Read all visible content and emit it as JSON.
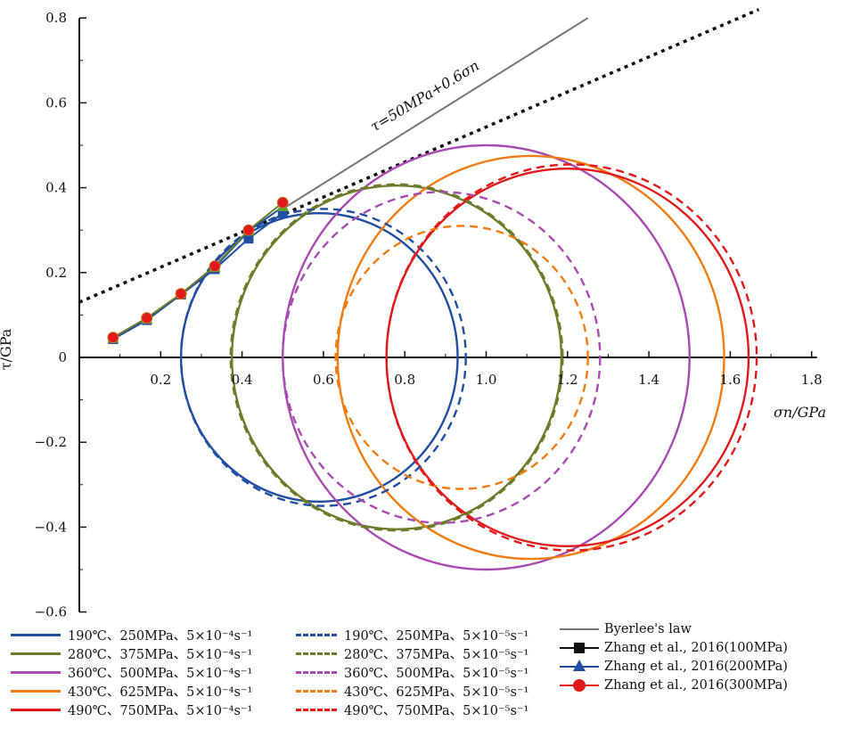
{
  "chart_data": {
    "type": "scatter",
    "xlabel": "σn/GPa",
    "ylabel": "τ/GPa",
    "xlim": [
      0,
      1.8
    ],
    "ylim": [
      -0.6,
      0.8
    ],
    "x_ticks": [
      "0.2",
      "0.4",
      "0.6",
      "0.8",
      "1.0",
      "1.2",
      "1.4",
      "1.6",
      "1.8"
    ],
    "y_ticks": [
      "0.8",
      "0.6",
      "0.4",
      "0.2",
      "0",
      "-0.2",
      "-0.4",
      "-0.6"
    ],
    "annotation": "τ=50MPa+0.6σn",
    "circles": [
      {
        "name": "190℃、250MPa、5×10⁻⁴s⁻¹",
        "center": 0.59,
        "radius": 0.34,
        "color": "#1f4ea3",
        "dash": false
      },
      {
        "name": "280℃、375MPa、5×10⁻⁴s⁻¹",
        "center": 0.78,
        "radius": 0.405,
        "color": "#6b7d2a",
        "dash": false
      },
      {
        "name": "360℃、500MPa、5×10⁻⁴s⁻¹",
        "center": 1.0,
        "radius": 0.5,
        "color": "#a94bb2",
        "dash": false
      },
      {
        "name": "430℃、625MPa、5×10⁻⁴s⁻¹",
        "center": 1.11,
        "radius": 0.475,
        "color": "#f27c12",
        "dash": false
      },
      {
        "name": "490℃、750MPa、5×10⁻⁴s⁻¹",
        "center": 1.2,
        "radius": 0.445,
        "color": "#e01a1a",
        "dash": false
      },
      {
        "name": "190℃、250MPa、5×10⁻⁵s⁻¹",
        "center": 0.6,
        "radius": 0.35,
        "color": "#1f4ea3",
        "dash": true
      },
      {
        "name": "280℃、375MPa、5×10⁻⁵s⁻¹",
        "center": 0.78,
        "radius": 0.408,
        "color": "#6b7d2a",
        "dash": true
      },
      {
        "name": "360℃、500MPa、5×10⁻⁵s⁻¹",
        "center": 0.89,
        "radius": 0.39,
        "color": "#a94bb2",
        "dash": true
      },
      {
        "name": "430℃、625MPa、5×10⁻⁵s⁻¹",
        "center": 0.94,
        "radius": 0.31,
        "color": "#f27c12",
        "dash": true
      },
      {
        "name": "490℃、750MPa、5×10⁻⁵s⁻¹",
        "center": 1.21,
        "radius": 0.455,
        "color": "#e01a1a",
        "dash": true
      }
    ],
    "lines": [
      {
        "name": "Byerlee's law",
        "points": [
          [
            0.5,
            0.35
          ],
          [
            1.25,
            0.8
          ]
        ],
        "color": "#777777",
        "style": "solid"
      },
      {
        "name": "",
        "points": [
          [
            0,
            0.13
          ],
          [
            1.67,
            0.82
          ]
        ],
        "color": "#111111",
        "style": "dotted"
      }
    ],
    "series": [
      {
        "name": "Zhang et al., 2016(100MPa)",
        "marker": "square",
        "color": "#111111",
        "line_color": "#1f4ea3",
        "x": [
          0.083,
          0.166,
          0.25,
          0.333,
          0.416,
          0.5
        ],
        "y": [
          0.043,
          0.088,
          0.148,
          0.208,
          0.28,
          0.34
        ]
      },
      {
        "name": "Zhang et al., 2016(200MPa)",
        "marker": "triangle",
        "color": "#1f4ea3",
        "line_color": "#1f4ea3",
        "x": [
          0.083,
          0.166,
          0.25,
          0.333,
          0.416,
          0.5
        ],
        "y": [
          0.045,
          0.09,
          0.15,
          0.212,
          0.298,
          0.355
        ]
      },
      {
        "name": "Zhang et al., 2016(300MPa)",
        "marker": "circle",
        "color": "#e01a1a",
        "line_color": "#6b7d2a",
        "x": [
          0.083,
          0.166,
          0.25,
          0.333,
          0.416,
          0.5
        ],
        "y": [
          0.047,
          0.093,
          0.15,
          0.215,
          0.3,
          0.365
        ]
      }
    ]
  },
  "legend": {
    "col1": [
      {
        "label": "190℃、250MPa、5×10⁻⁴s⁻¹",
        "color": "#1f4ea3",
        "style": "solid"
      },
      {
        "label": "280℃、375MPa、5×10⁻⁴s⁻¹",
        "color": "#6b7d2a",
        "style": "solid"
      },
      {
        "label": "360℃、500MPa、5×10⁻⁴s⁻¹",
        "color": "#a94bb2",
        "style": "solid"
      },
      {
        "label": "430℃、625MPa、5×10⁻⁴s⁻¹",
        "color": "#f27c12",
        "style": "solid"
      },
      {
        "label": "490℃、750MPa、5×10⁻⁴s⁻¹",
        "color": "#e01a1a",
        "style": "solid"
      }
    ],
    "col2": [
      {
        "label": "190℃、250MPa、5×10⁻⁵s⁻¹",
        "color": "#1f4ea3",
        "style": "dashed"
      },
      {
        "label": "280℃、375MPa、5×10⁻⁵s⁻¹",
        "color": "#6b7d2a",
        "style": "dashed"
      },
      {
        "label": "360℃、500MPa、5×10⁻⁵s⁻¹",
        "color": "#a94bb2",
        "style": "dashed"
      },
      {
        "label": "430℃、625MPa、5×10⁻⁵s⁻¹",
        "color": "#f27c12",
        "style": "dashed"
      },
      {
        "label": "490℃、750MPa、5×10⁻⁵s⁻¹",
        "color": "#e01a1a",
        "style": "dashed"
      }
    ],
    "col3": [
      {
        "label": "Byerlee's law",
        "color": "#777777",
        "marker": "none"
      },
      {
        "label": "Zhang et al., 2016(100MPa)",
        "color": "#111111",
        "marker": "square"
      },
      {
        "label": "Zhang et al., 2016(200MPa)",
        "color": "#1f4ea3",
        "marker": "triangle"
      },
      {
        "label": "Zhang et al., 2016(300MPa)",
        "color": "#e01a1a",
        "marker": "circle"
      }
    ]
  }
}
